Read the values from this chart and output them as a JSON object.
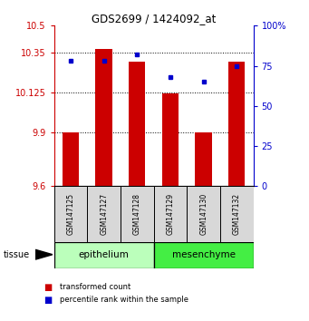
{
  "title": "GDS2699 / 1424092_at",
  "samples": [
    "GSM147125",
    "GSM147127",
    "GSM147128",
    "GSM147129",
    "GSM147130",
    "GSM147132"
  ],
  "red_values": [
    9.9,
    10.37,
    10.3,
    10.12,
    9.9,
    10.3
  ],
  "blue_values": [
    78,
    78,
    82,
    68,
    65,
    75
  ],
  "ylim_left": [
    9.6,
    10.5
  ],
  "ylim_right": [
    0,
    100
  ],
  "yticks_left": [
    9.6,
    9.9,
    10.125,
    10.35,
    10.5
  ],
  "ytick_labels_left": [
    "9.6",
    "9.9",
    "10.125",
    "10.35",
    "10.5"
  ],
  "yticks_right": [
    0,
    25,
    50,
    75,
    100
  ],
  "ytick_labels_right": [
    "0",
    "25",
    "50",
    "75",
    "100%"
  ],
  "groups": [
    {
      "label": "epithelium",
      "indices": [
        0,
        1,
        2
      ],
      "color": "#bbffbb"
    },
    {
      "label": "mesenchyme",
      "indices": [
        3,
        4,
        5
      ],
      "color": "#44ee44"
    }
  ],
  "bar_color": "#cc0000",
  "dot_color": "#0000cc",
  "bar_width": 0.5,
  "grid_yticks": [
    9.9,
    10.125,
    10.35
  ],
  "tissue_label": "tissue",
  "legend_red": "transformed count",
  "legend_blue": "percentile rank within the sample",
  "bg_color": "#ffffff"
}
